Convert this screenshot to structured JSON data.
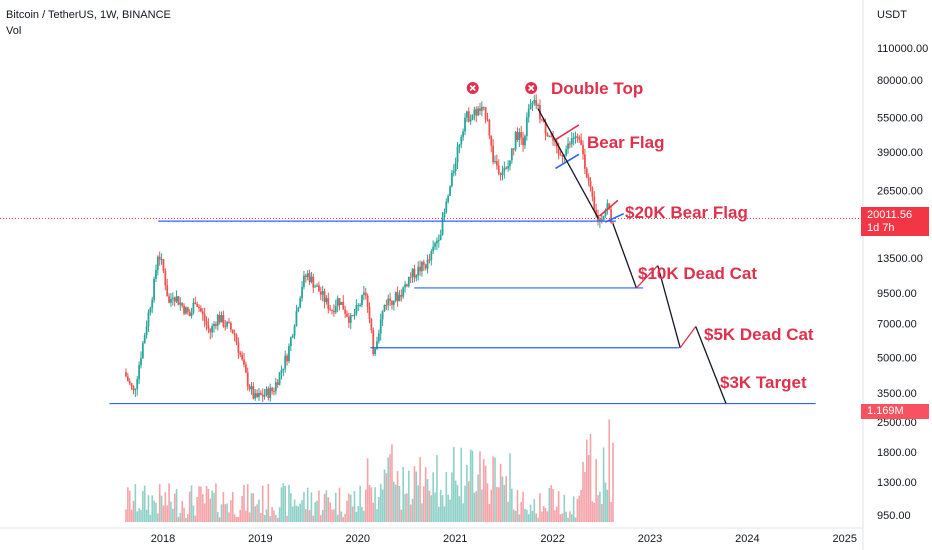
{
  "header": {
    "symbol_line": "Bitcoin / TetherUS, 1W, BINANCE",
    "indicator": "Vol",
    "currency": "USDT"
  },
  "last_price": {
    "value": "20011.56",
    "countdown": "1d 7h"
  },
  "last_volume": "1.169M",
  "chart_data": {
    "type": "candlestick",
    "title": "Bitcoin / TetherUS, 1W, BINANCE",
    "y_scale": "log",
    "price_ticks": [
      "110000.00",
      "80000.00",
      "55000.00",
      "39000.00",
      "26500.00",
      "13500.00",
      "9500.00",
      "7000.00",
      "5000.00",
      "3500.00"
    ],
    "volume_ticks": [
      "2500.00",
      "1800.00",
      "1300.00",
      "950.00"
    ],
    "x_ticks": [
      "2018",
      "2019",
      "2020",
      "2021",
      "2022",
      "2023",
      "2024",
      "2025"
    ],
    "price_anchors": [
      {
        "t": 2017.62,
        "p": 4300
      },
      {
        "t": 2017.72,
        "p": 3500
      },
      {
        "t": 2017.85,
        "p": 7000
      },
      {
        "t": 2017.93,
        "p": 10500
      },
      {
        "t": 2017.97,
        "p": 14500
      },
      {
        "t": 2018.03,
        "p": 11500
      },
      {
        "t": 2018.08,
        "p": 8500
      },
      {
        "t": 2018.12,
        "p": 9500
      },
      {
        "t": 2018.3,
        "p": 7500
      },
      {
        "t": 2018.35,
        "p": 9000
      },
      {
        "t": 2018.5,
        "p": 6400
      },
      {
        "t": 2018.58,
        "p": 7500
      },
      {
        "t": 2018.75,
        "p": 6400
      },
      {
        "t": 2018.88,
        "p": 4000
      },
      {
        "t": 2018.96,
        "p": 3300
      },
      {
        "t": 2019.15,
        "p": 3600
      },
      {
        "t": 2019.3,
        "p": 5200
      },
      {
        "t": 2019.45,
        "p": 10500
      },
      {
        "t": 2019.5,
        "p": 11500
      },
      {
        "t": 2019.6,
        "p": 10000
      },
      {
        "t": 2019.75,
        "p": 8000
      },
      {
        "t": 2019.82,
        "p": 9000
      },
      {
        "t": 2019.95,
        "p": 7200
      },
      {
        "t": 2020.1,
        "p": 9500
      },
      {
        "t": 2020.18,
        "p": 5300
      },
      {
        "t": 2020.3,
        "p": 8700
      },
      {
        "t": 2020.45,
        "p": 9300
      },
      {
        "t": 2020.55,
        "p": 11200
      },
      {
        "t": 2020.75,
        "p": 13000
      },
      {
        "t": 2020.88,
        "p": 18500
      },
      {
        "t": 2020.98,
        "p": 29000
      },
      {
        "t": 2021.03,
        "p": 38000
      },
      {
        "t": 2021.12,
        "p": 55000
      },
      {
        "t": 2021.28,
        "p": 59000
      },
      {
        "t": 2021.35,
        "p": 56000
      },
      {
        "t": 2021.4,
        "p": 37000
      },
      {
        "t": 2021.47,
        "p": 33000
      },
      {
        "t": 2021.55,
        "p": 32000
      },
      {
        "t": 2021.65,
        "p": 47000
      },
      {
        "t": 2021.72,
        "p": 44000
      },
      {
        "t": 2021.78,
        "p": 60000
      },
      {
        "t": 2021.85,
        "p": 63000
      },
      {
        "t": 2021.93,
        "p": 50000
      },
      {
        "t": 2022.0,
        "p": 46000
      },
      {
        "t": 2022.08,
        "p": 37000
      },
      {
        "t": 2022.18,
        "p": 41000
      },
      {
        "t": 2022.25,
        "p": 46000
      },
      {
        "t": 2022.33,
        "p": 39000
      },
      {
        "t": 2022.38,
        "p": 30000
      },
      {
        "t": 2022.45,
        "p": 21000
      },
      {
        "t": 2022.5,
        "p": 19500
      },
      {
        "t": 2022.58,
        "p": 23000
      },
      {
        "t": 2022.62,
        "p": 20000
      }
    ],
    "annotations": [
      {
        "text": "Double Top"
      },
      {
        "text": "Bear Flag"
      },
      {
        "text": "$20K Bear Flag"
      },
      {
        "text": "$10K Dead Cat"
      },
      {
        "text": "$5K Dead Cat"
      },
      {
        "text": "$3K Target"
      }
    ],
    "horizontal_levels": [
      19500,
      10000,
      5500,
      3150
    ],
    "colors": {
      "up": "#26a69a",
      "down": "#ef5350",
      "annotation": "#e0314c",
      "level": "#2962ff",
      "projection": "#131722"
    }
  }
}
